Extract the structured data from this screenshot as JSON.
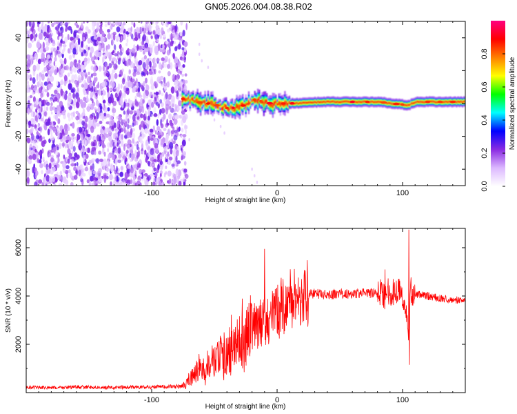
{
  "title": "GN05.2026.004.08.38.R02",
  "chart_data": [
    {
      "type": "heatmap",
      "name": "spectrogram",
      "xlabel": "Height of straight line (km)",
      "ylabel": "Frequency (Hz)",
      "xlim": [
        -200,
        150
      ],
      "ylim": [
        -50,
        50
      ],
      "xticks": [
        -100,
        0,
        100
      ],
      "yticks": [
        -40,
        -20,
        0,
        20,
        40
      ],
      "colorbar": {
        "label": "Normalized spectral amplitude",
        "range": [
          0,
          1
        ],
        "ticks": [
          0.0,
          0.2,
          0.4,
          0.6,
          0.8
        ],
        "colors": [
          "#ffffff",
          "#dcb8ff",
          "#8a2be2",
          "#0000ff",
          "#00ffff",
          "#00ff00",
          "#ffff00",
          "#ff8000",
          "#ff0000",
          "#ff0080"
        ]
      },
      "noise_region_x": [
        -200,
        -78
      ],
      "signal_ridge": [
        {
          "x": -76,
          "f": 3
        },
        {
          "x": -70,
          "f": 2
        },
        {
          "x": -64,
          "f": 1
        },
        {
          "x": -58,
          "f": 0
        },
        {
          "x": -52,
          "f": 0
        },
        {
          "x": -45,
          "f": -2
        },
        {
          "x": -38,
          "f": -3
        },
        {
          "x": -30,
          "f": -2
        },
        {
          "x": -22,
          "f": 0
        },
        {
          "x": -17,
          "f": 3
        },
        {
          "x": -12,
          "f": 1
        },
        {
          "x": -5,
          "f": 0
        },
        {
          "x": 10,
          "f": 0
        },
        {
          "x": 40,
          "f": 1
        },
        {
          "x": 80,
          "f": 1
        },
        {
          "x": 104,
          "f": -1
        },
        {
          "x": 110,
          "f": 1
        },
        {
          "x": 150,
          "f": 1
        }
      ]
    },
    {
      "type": "line",
      "name": "snr",
      "xlabel": "Height of straight line (km)",
      "ylabel": "SNR (10 * v/v)",
      "xlim": [
        -200,
        150
      ],
      "ylim": [
        0,
        6800
      ],
      "xticks": [
        -100,
        0,
        100
      ],
      "yticks": [
        2000,
        4000,
        6000
      ],
      "color": "#ff0000",
      "series": [
        {
          "name": "SNR",
          "x": [
            -200,
            -180,
            -160,
            -140,
            -120,
            -100,
            -90,
            -80,
            -74,
            -70,
            -66,
            -62,
            -58,
            -54,
            -50,
            -46,
            -42,
            -38,
            -34,
            -30,
            -26,
            -22,
            -18,
            -16,
            -14,
            -12,
            -10,
            -6,
            -2,
            2,
            6,
            10,
            16,
            22,
            30,
            40,
            50,
            60,
            70,
            80,
            84,
            86,
            88,
            92,
            96,
            100,
            104,
            105,
            106,
            108,
            110,
            120,
            130,
            140,
            150
          ],
          "values": [
            220,
            200,
            230,
            210,
            220,
            230,
            240,
            250,
            300,
            550,
            700,
            1100,
            900,
            1350,
            1200,
            1600,
            1450,
            1900,
            1700,
            2200,
            2050,
            2500,
            2800,
            2600,
            2900,
            2750,
            3000,
            3050,
            3250,
            3450,
            3700,
            3850,
            3950,
            4050,
            4100,
            4050,
            4100,
            4080,
            4120,
            4100,
            4250,
            3900,
            4200,
            4150,
            4300,
            3950,
            3000,
            2100,
            4400,
            3950,
            4100,
            4000,
            3900,
            3850,
            3800
          ],
          "annotated_spikes": [
            {
              "x": -10,
              "value": 5950
            },
            {
              "x": 86,
              "value": 5100
            },
            {
              "x": 105,
              "value": 6750
            },
            {
              "x": 105.5,
              "value": 1150
            }
          ]
        }
      ]
    }
  ]
}
